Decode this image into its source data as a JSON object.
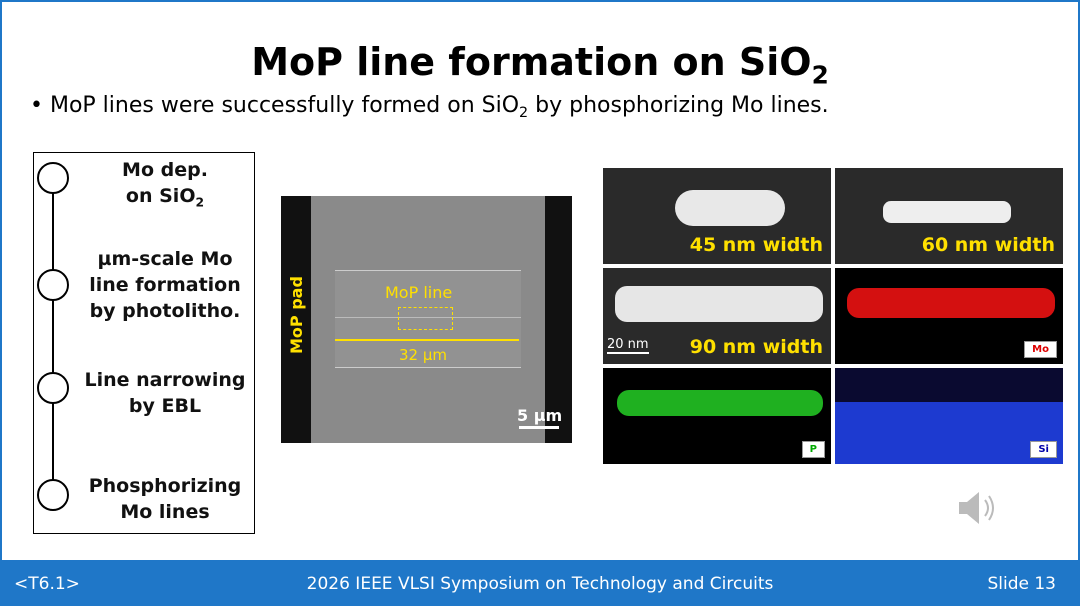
{
  "title": {
    "text": "MoP line formation on SiO",
    "sub": "2"
  },
  "bullet": {
    "text": "MoP lines were successfully formed on SiO",
    "sub": "2",
    "rest": " by phosphorizing Mo lines."
  },
  "steps": [
    {
      "lines": [
        "Mo dep.",
        "on SiO"
      ],
      "sub": "2"
    },
    {
      "lines": [
        "µm-scale Mo",
        "line formation",
        "by photolitho."
      ]
    },
    {
      "lines": [
        "Line narrowing",
        "by EBL"
      ]
    },
    {
      "lines": [
        "Phosphorizing",
        "Mo lines"
      ]
    }
  ],
  "sem": {
    "pad": "MoP pad",
    "line": "MoP line",
    "length": "32 µm",
    "scale": "5 µm"
  },
  "tem": {
    "w45": "45 nm width",
    "w60": "60 nm width",
    "w90": "90 nm width",
    "scale": "20 nm",
    "mo": "Mo",
    "p": "P",
    "si": "Si"
  },
  "footer": {
    "left": "<T6.1>",
    "center": "2026 IEEE VLSI Symposium on Technology and Circuits",
    "right": "Slide 13"
  }
}
